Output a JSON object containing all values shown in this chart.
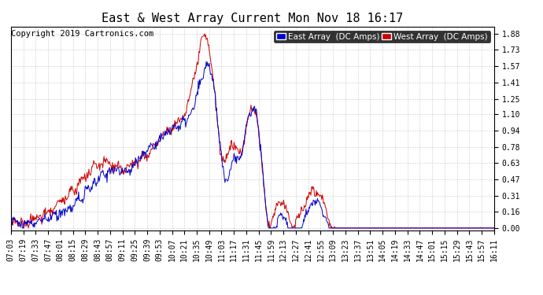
{
  "title": "East & West Array Current Mon Nov 18 16:17",
  "copyright": "Copyright 2019 Cartronics.com",
  "legend_east": "East Array  (DC Amps)",
  "legend_west": "West Array  (DC Amps)",
  "east_color": "#0000cc",
  "west_color": "#cc0000",
  "background_color": "#ffffff",
  "grid_color": "#bbbbbb",
  "ylim": [
    -0.02,
    1.95
  ],
  "yticks": [
    0.0,
    0.16,
    0.31,
    0.47,
    0.63,
    0.78,
    0.94,
    1.1,
    1.25,
    1.41,
    1.57,
    1.73,
    1.88
  ],
  "x_labels": [
    "07:03",
    "07:19",
    "07:33",
    "07:47",
    "08:01",
    "08:15",
    "08:29",
    "08:43",
    "08:57",
    "09:11",
    "09:25",
    "09:39",
    "09:53",
    "10:07",
    "10:21",
    "10:35",
    "10:49",
    "11:03",
    "11:17",
    "11:31",
    "11:45",
    "11:59",
    "12:13",
    "12:27",
    "12:41",
    "12:55",
    "13:09",
    "13:23",
    "13:37",
    "13:51",
    "14:05",
    "14:19",
    "14:33",
    "14:47",
    "15:01",
    "15:15",
    "15:29",
    "15:43",
    "15:57",
    "16:11"
  ],
  "title_fontsize": 11,
  "tick_fontsize": 7,
  "copyright_fontsize": 7.5
}
